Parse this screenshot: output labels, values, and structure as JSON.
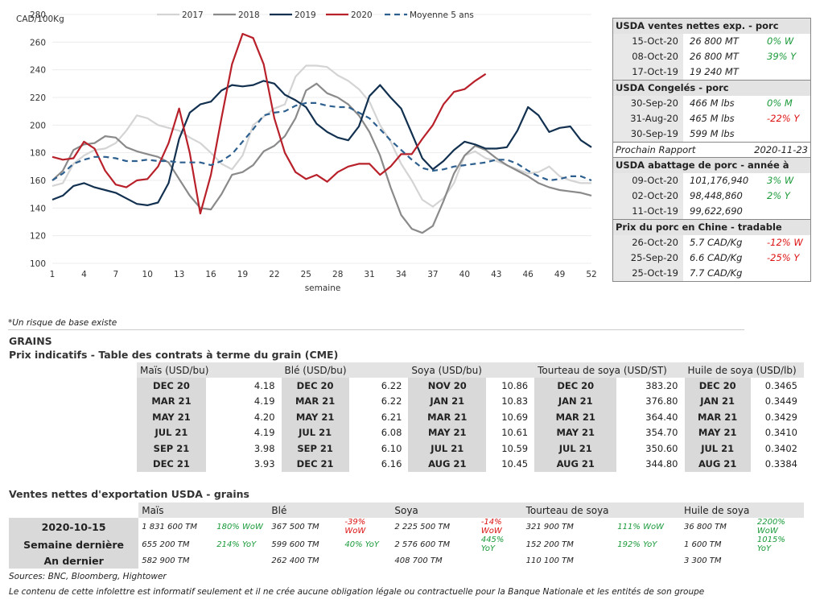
{
  "chart_data": {
    "type": "line",
    "ylabel": "CAD/100Kg",
    "xlabel": "semaine",
    "ylim": [
      100,
      280
    ],
    "yticks": [
      100,
      120,
      140,
      160,
      180,
      200,
      220,
      240,
      260,
      280
    ],
    "xticks": [
      1,
      4,
      7,
      10,
      13,
      16,
      19,
      22,
      25,
      28,
      31,
      34,
      37,
      40,
      43,
      46,
      49,
      52
    ],
    "xlim": [
      1,
      52
    ],
    "legend": "top",
    "series": [
      {
        "name": "2017",
        "color": "#d4d4d4",
        "dash": false,
        "values": [
          156,
          158,
          172,
          178,
          182,
          183,
          187,
          196,
          207,
          205,
          200,
          198,
          196,
          191,
          187,
          180,
          172,
          168,
          178,
          200,
          206,
          212,
          215,
          235,
          243,
          243,
          242,
          236,
          232,
          226,
          217,
          200,
          188,
          172,
          160,
          146,
          141,
          147,
          158,
          178,
          181,
          176,
          174,
          171,
          168,
          165,
          166,
          170,
          163,
          160,
          158,
          158
        ]
      },
      {
        "name": "2018",
        "color": "#8a8a8a",
        "dash": false,
        "values": [
          160,
          167,
          182,
          186,
          187,
          192,
          191,
          184,
          181,
          179,
          177,
          173,
          161,
          149,
          140,
          139,
          150,
          164,
          166,
          171,
          181,
          185,
          192,
          205,
          225,
          230,
          223,
          220,
          215,
          207,
          195,
          178,
          155,
          135,
          125,
          122,
          127,
          145,
          165,
          178,
          185,
          182,
          176,
          171,
          167,
          163,
          158,
          155,
          153,
          152,
          151,
          149
        ]
      },
      {
        "name": "2019",
        "color": "#12304f",
        "dash": false,
        "values": [
          146,
          149,
          156,
          158,
          155,
          153,
          151,
          147,
          143,
          142,
          144,
          158,
          190,
          209,
          215,
          217,
          225,
          229,
          228,
          229,
          232,
          230,
          222,
          218,
          213,
          201,
          195,
          191,
          189,
          199,
          221,
          229,
          220,
          212,
          194,
          176,
          168,
          174,
          182,
          188,
          186,
          183,
          183,
          184,
          196,
          213,
          207,
          195,
          198,
          199,
          189,
          184
        ]
      },
      {
        "name": "2020",
        "color": "#b8202a",
        "dash": false,
        "values": [
          177,
          175,
          176,
          188,
          183,
          167,
          157,
          155,
          160,
          161,
          170,
          187,
          212,
          180,
          136,
          164,
          205,
          244,
          266,
          263,
          244,
          205,
          180,
          166,
          161,
          164,
          159,
          166,
          170,
          172,
          172,
          164,
          170,
          179,
          179,
          190,
          200,
          215,
          224,
          226,
          232,
          237
        ]
      },
      {
        "name": "Moyenne 5 ans",
        "color": "#2d5f8f",
        "dash": true,
        "values": [
          160,
          165,
          172,
          175,
          177,
          177,
          176,
          174,
          174,
          175,
          174,
          174,
          173,
          173,
          173,
          171,
          174,
          179,
          188,
          197,
          207,
          209,
          210,
          214,
          216,
          216,
          214,
          213,
          213,
          209,
          205,
          197,
          189,
          182,
          175,
          169,
          167,
          168,
          170,
          171,
          172,
          173,
          175,
          175,
          172,
          167,
          163,
          160,
          161,
          163,
          163,
          160
        ]
      }
    ]
  },
  "usda_box": {
    "sections": [
      {
        "title": "USDA ventes nettes exp. - porc",
        "rows": [
          {
            "date": "15-Oct-20",
            "value": "26 800  MT",
            "pct": "0% W",
            "sign": "pos"
          },
          {
            "date": "08-Oct-20",
            "value": "26 800  MT",
            "pct": "39% Y",
            "sign": "pos"
          },
          {
            "date": "17-Oct-19",
            "value": "19 240  MT",
            "pct": "",
            "sign": ""
          }
        ]
      },
      {
        "title": "USDA Congelés - porc",
        "rows": [
          {
            "date": "30-Sep-20",
            "value": "466 M lbs",
            "pct": "0% M",
            "sign": "pos"
          },
          {
            "date": "31-Aug-20",
            "value": "465 M lbs",
            "pct": "-22% Y",
            "sign": "neg"
          },
          {
            "date": "30-Sep-19",
            "value": "599 M lbs",
            "pct": "",
            "sign": ""
          }
        ]
      },
      {
        "title": "USDA abattage de porc - année à date",
        "rows": [
          {
            "date": "09-Oct-20",
            "value": "101,176,940",
            "pct": "3% W",
            "sign": "pos"
          },
          {
            "date": "02-Oct-20",
            "value": "98,448,860",
            "pct": "2% Y",
            "sign": "pos"
          },
          {
            "date": "11-Oct-19",
            "value": "99,622,690",
            "pct": "",
            "sign": ""
          }
        ]
      },
      {
        "title": "Prix du porc en Chine - tradable",
        "rows": [
          {
            "date": "26-Oct-20",
            "value": "5.7 CAD/Kg",
            "pct": "-12% W",
            "sign": "neg"
          },
          {
            "date": "25-Sep-20",
            "value": "6.6 CAD/Kg",
            "pct": "-25% Y",
            "sign": "neg"
          },
          {
            "date": "25-Oct-19",
            "value": "7.7 CAD/Kg",
            "pct": "",
            "sign": ""
          }
        ]
      }
    ],
    "next_report_label": "Prochain Rapport",
    "next_report_date": "2020-11-23"
  },
  "note": "*Un risque de base existe",
  "grains_title": "GRAINS",
  "futures_title": "Prix indicatifs - Table des contrats à terme du grain (CME)",
  "futures": {
    "headers": [
      "Maïs (USD/bu)",
      "Blé (USD/bu)",
      "Soya (USD/bu)",
      "Tourteau de soya (USD/ST)",
      "Huile de soya (USD/lb)"
    ],
    "rows": [
      [
        [
          "DEC 20",
          "4.18"
        ],
        [
          "DEC 20",
          "6.22"
        ],
        [
          "NOV 20",
          "10.86"
        ],
        [
          "DEC 20",
          "383.20"
        ],
        [
          "DEC 20",
          "0.3465"
        ]
      ],
      [
        [
          "MAR 21",
          "4.19"
        ],
        [
          "MAR 21",
          "6.22"
        ],
        [
          "JAN 21",
          "10.83"
        ],
        [
          "JAN 21",
          "376.80"
        ],
        [
          "JAN 21",
          "0.3449"
        ]
      ],
      [
        [
          "MAY 21",
          "4.20"
        ],
        [
          "MAY 21",
          "6.21"
        ],
        [
          "MAR 21",
          "10.69"
        ],
        [
          "MAR 21",
          "364.40"
        ],
        [
          "MAR 21",
          "0.3429"
        ]
      ],
      [
        [
          "JUL 21",
          "4.19"
        ],
        [
          "JUL 21",
          "6.08"
        ],
        [
          "MAY 21",
          "10.61"
        ],
        [
          "MAY 21",
          "354.70"
        ],
        [
          "MAY 21",
          "0.3410"
        ]
      ],
      [
        [
          "SEP 21",
          "3.98"
        ],
        [
          "SEP 21",
          "6.10"
        ],
        [
          "JUL 21",
          "10.59"
        ],
        [
          "JUL 21",
          "350.60"
        ],
        [
          "JUL 21",
          "0.3402"
        ]
      ],
      [
        [
          "DEC 21",
          "3.93"
        ],
        [
          "DEC 21",
          "6.16"
        ],
        [
          "AUG 21",
          "10.45"
        ],
        [
          "AUG 21",
          "344.80"
        ],
        [
          "AUG 21",
          "0.3384"
        ]
      ]
    ]
  },
  "exports_title": "Ventes nettes d'exportation USDA - grains",
  "exports": {
    "headers": [
      "Maïs",
      "Blé",
      "Soya",
      "Tourteau de soya",
      "Huile de soya"
    ],
    "rows": [
      {
        "label": "2020-10-15",
        "cells": [
          [
            "1 831 600 TM",
            "180% WoW",
            "pos"
          ],
          [
            "367 500 TM",
            "-39% WoW",
            "neg"
          ],
          [
            "2 225 500 TM",
            "-14% WoW",
            "neg"
          ],
          [
            "321 900 TM",
            "111% WoW",
            "pos"
          ],
          [
            "36 800 TM",
            "2200% WoW",
            "pos"
          ]
        ]
      },
      {
        "label": "Semaine dernière",
        "cells": [
          [
            "655 200 TM",
            "214% YoY",
            "pos"
          ],
          [
            "599 600 TM",
            "40% YoY",
            "pos"
          ],
          [
            "2 576 600 TM",
            "445% YoY",
            "pos"
          ],
          [
            "152 200 TM",
            "192% YoY",
            "pos"
          ],
          [
            "1 600 TM",
            "1015% YoY",
            "pos"
          ]
        ]
      },
      {
        "label": "An dernier",
        "cells": [
          [
            "582 900 TM",
            "",
            ""
          ],
          [
            "262 400 TM",
            "",
            ""
          ],
          [
            "408 700 TM",
            "",
            ""
          ],
          [
            "110 100 TM",
            "",
            ""
          ],
          [
            "3 300 TM",
            "",
            ""
          ]
        ]
      }
    ]
  },
  "sources": "Sources: BNC, Bloomberg, Hightower",
  "disclaimer": "Le contenu de cette infolettre est informatif seulement et il ne crée aucune obligation légale ou contractuelle pour la Banque Nationale et les entités de son groupe"
}
